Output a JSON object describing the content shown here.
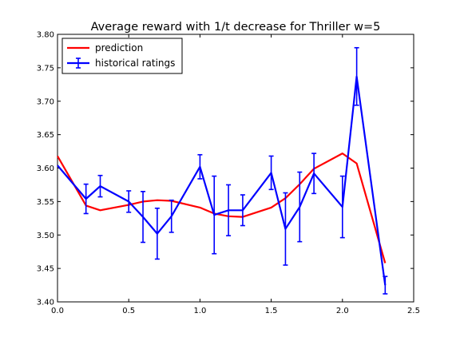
{
  "chart_data": {
    "type": "line",
    "title": "Average reward with 1/t decrease for Thriller w=5",
    "xlabel": "",
    "ylabel": "",
    "xlim": [
      0.0,
      2.5
    ],
    "ylim": [
      3.4,
      3.8
    ],
    "x_ticks": [
      "0.0",
      "0.5",
      "1.0",
      "1.5",
      "2.0",
      "2.5"
    ],
    "y_ticks": [
      "3.40",
      "3.45",
      "3.50",
      "3.55",
      "3.60",
      "3.65",
      "3.70",
      "3.75",
      "3.80"
    ],
    "grid": false,
    "legend_position": "upper-left",
    "series": [
      {
        "name": "prediction",
        "color": "#ff0000",
        "x": [
          0.0,
          0.2,
          0.3,
          0.5,
          0.6,
          0.7,
          0.8,
          1.0,
          1.1,
          1.2,
          1.3,
          1.5,
          1.6,
          1.7,
          1.8,
          2.0,
          2.1,
          2.3
        ],
        "y": [
          3.618,
          3.544,
          3.537,
          3.545,
          3.55,
          3.552,
          3.551,
          3.541,
          3.532,
          3.528,
          3.527,
          3.541,
          3.555,
          3.576,
          3.599,
          3.622,
          3.607,
          3.458
        ]
      },
      {
        "name": "historical ratings",
        "color": "#0000ff",
        "errorbars": true,
        "x": [
          0.0,
          0.2,
          0.3,
          0.5,
          0.6,
          0.7,
          0.8,
          1.0,
          1.1,
          1.2,
          1.3,
          1.5,
          1.6,
          1.7,
          1.8,
          2.0,
          2.1,
          2.3
        ],
        "y": [
          3.604,
          3.554,
          3.573,
          3.55,
          3.527,
          3.502,
          3.528,
          3.602,
          3.53,
          3.537,
          3.537,
          3.593,
          3.509,
          3.542,
          3.592,
          3.542,
          3.737,
          3.425
        ],
        "err": [
          0.0,
          0.022,
          0.016,
          0.016,
          0.038,
          0.038,
          0.024,
          0.018,
          0.058,
          0.038,
          0.023,
          0.025,
          0.054,
          0.052,
          0.03,
          0.046,
          0.043,
          0.013
        ]
      }
    ]
  }
}
